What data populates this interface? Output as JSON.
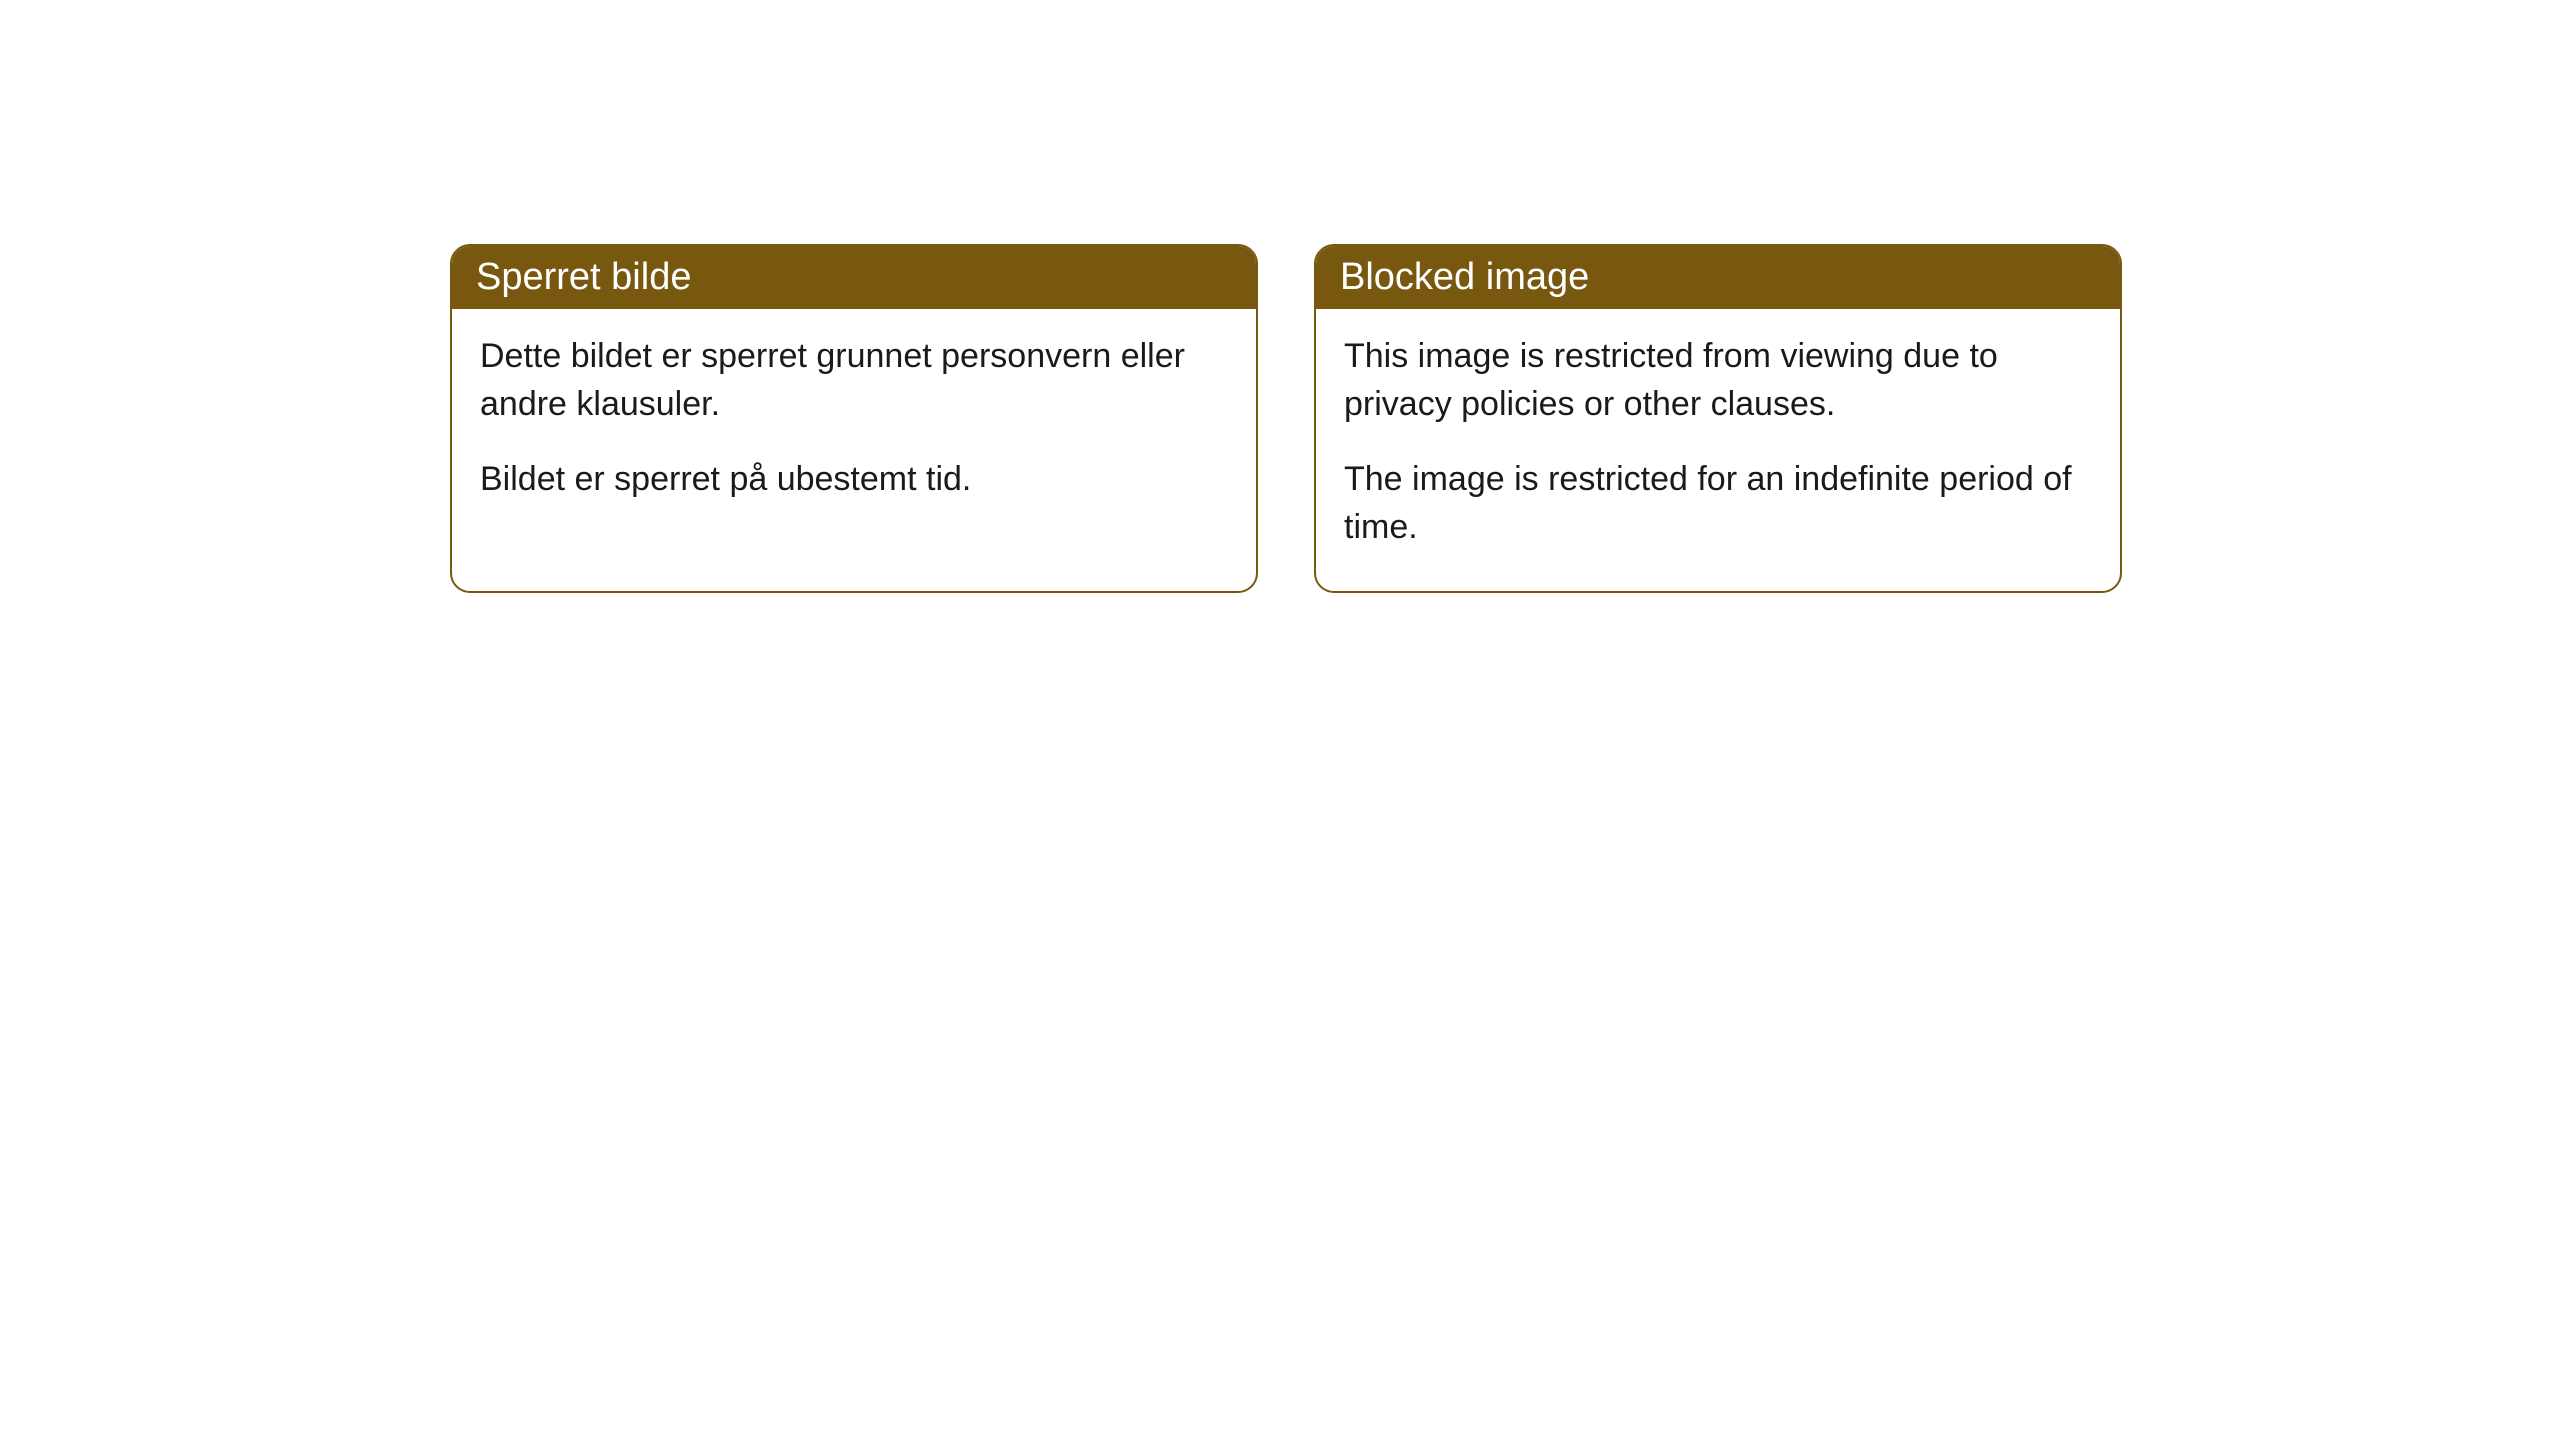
{
  "cards": [
    {
      "title": "Sperret bilde",
      "paragraph1": "Dette bildet er sperret grunnet personvern eller andre klausuler.",
      "paragraph2": "Bildet er sperret på ubestemt tid."
    },
    {
      "title": "Blocked image",
      "paragraph1": "This image is restricted from viewing due to privacy policies or other clauses.",
      "paragraph2": "The image is restricted for an indefinite period of time."
    }
  ],
  "styling": {
    "header_background": "#78580f",
    "header_text_color": "#ffffff",
    "border_color": "#78580f",
    "body_background": "#ffffff",
    "body_text_color": "#1a1a1a",
    "border_radius": 20,
    "title_fontsize": 38,
    "body_fontsize": 34
  }
}
